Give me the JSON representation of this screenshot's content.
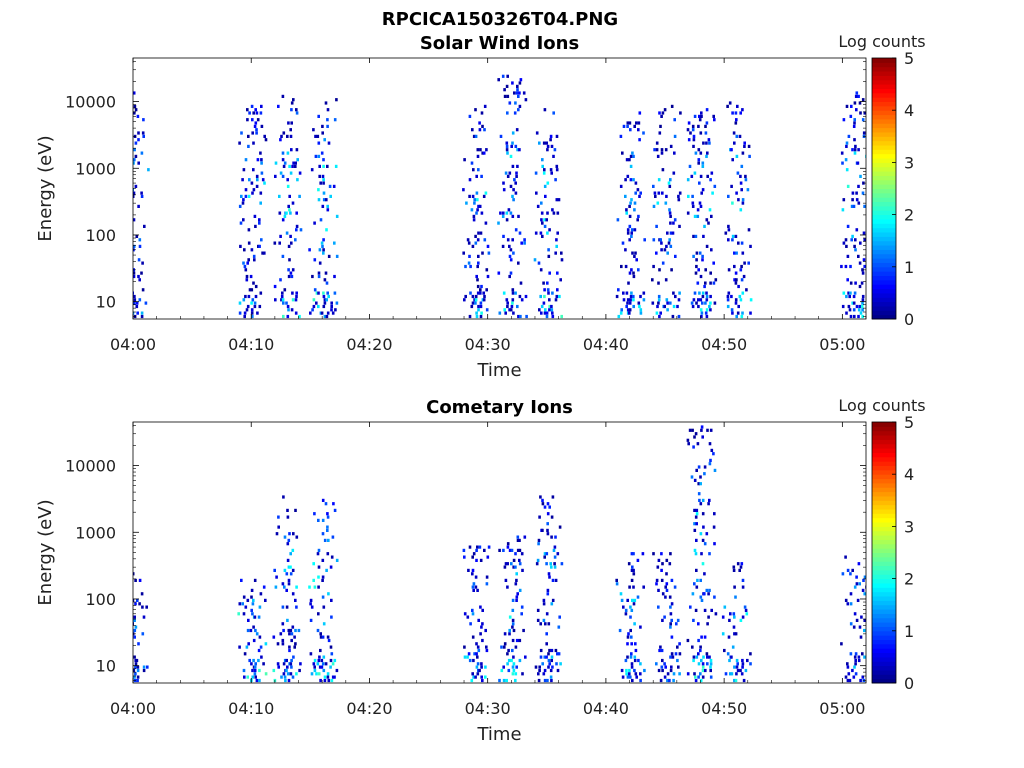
{
  "figure_title": "RPCICA150326T04.PNG",
  "colors": {
    "colormap": [
      "#00007f",
      "#0000ff",
      "#007fff",
      "#00ffff",
      "#7fff7f",
      "#ffff00",
      "#ff7f00",
      "#ff0000",
      "#7f0000"
    ],
    "axes": "#000000",
    "background": "#ffffff"
  },
  "chart_data": [
    {
      "type": "heatmap",
      "title": "Solar Wind Ions",
      "xlabel": "Time",
      "ylabel": "Energy (eV)",
      "colorbar_label": "Log counts",
      "colorbar_ticks": [
        "0",
        "1",
        "2",
        "3",
        "4",
        "5"
      ],
      "clim": [
        0,
        5
      ],
      "x_range": [
        "04:00",
        "05:02"
      ],
      "x_ticks": [
        "04:00",
        "04:10",
        "04:20",
        "04:30",
        "04:40",
        "04:50",
        "05:00"
      ],
      "y_scale": "log",
      "y_range": [
        5.5,
        45000
      ],
      "y_ticks": [
        "10",
        "100",
        "1000",
        "10000"
      ],
      "bursts": [
        {
          "t": "04:00",
          "e_range": [
            6,
            15000
          ],
          "peak": 1.6
        },
        {
          "t": "04:10",
          "e_range": [
            6,
            9000
          ],
          "peak": 2.0
        },
        {
          "t": "04:13",
          "e_range": [
            6,
            12000
          ],
          "peak": 2.2
        },
        {
          "t": "04:16",
          "e_range": [
            6,
            12000
          ],
          "peak": 2.3
        },
        {
          "t": "04:29",
          "e_range": [
            6,
            9000
          ],
          "peak": 2.0
        },
        {
          "t": "04:32",
          "e_range": [
            6,
            25000
          ],
          "peak": 2.2
        },
        {
          "t": "04:35",
          "e_range": [
            6,
            10000
          ],
          "peak": 2.4
        },
        {
          "t": "04:42",
          "e_range": [
            6,
            8000
          ],
          "peak": 1.9
        },
        {
          "t": "04:45",
          "e_range": [
            6,
            9000
          ],
          "peak": 2.0
        },
        {
          "t": "04:48",
          "e_range": [
            6,
            8000
          ],
          "peak": 2.0
        },
        {
          "t": "04:51",
          "e_range": [
            6,
            10000
          ],
          "peak": 2.1
        },
        {
          "t": "05:01",
          "e_range": [
            6,
            15000
          ],
          "peak": 2.1
        }
      ]
    },
    {
      "type": "heatmap",
      "title": "Cometary Ions",
      "xlabel": "Time",
      "ylabel": "Energy (eV)",
      "colorbar_label": "Log counts",
      "colorbar_ticks": [
        "0",
        "1",
        "2",
        "3",
        "4",
        "5"
      ],
      "clim": [
        0,
        5
      ],
      "x_range": [
        "04:00",
        "05:02"
      ],
      "x_ticks": [
        "04:00",
        "04:10",
        "04:20",
        "04:30",
        "04:40",
        "04:50",
        "05:00"
      ],
      "y_scale": "log",
      "y_range": [
        5.5,
        45000
      ],
      "y_ticks": [
        "10",
        "100",
        "1000",
        "10000"
      ],
      "bursts": [
        {
          "t": "04:00",
          "e_range": [
            6,
            250
          ],
          "peak": 1.5
        },
        {
          "t": "04:10",
          "e_range": [
            6,
            200
          ],
          "peak": 2.4
        },
        {
          "t": "04:13",
          "e_range": [
            6,
            3600
          ],
          "peak": 2.2
        },
        {
          "t": "04:16",
          "e_range": [
            6,
            3300
          ],
          "peak": 2.3
        },
        {
          "t": "04:29",
          "e_range": [
            6,
            600
          ],
          "peak": 2.2
        },
        {
          "t": "04:32",
          "e_range": [
            6,
            1000
          ],
          "peak": 2.2
        },
        {
          "t": "04:35",
          "e_range": [
            6,
            3400
          ],
          "peak": 1.9
        },
        {
          "t": "04:42",
          "e_range": [
            6,
            500
          ],
          "peak": 2.0
        },
        {
          "t": "04:45",
          "e_range": [
            6,
            500
          ],
          "peak": 1.6
        },
        {
          "t": "04:48",
          "e_range": [
            6,
            40000
          ],
          "peak": 2.2
        },
        {
          "t": "04:51",
          "e_range": [
            6,
            350
          ],
          "peak": 2.2
        },
        {
          "t": "05:01",
          "e_range": [
            6,
            500
          ],
          "peak": 2.0
        }
      ]
    }
  ]
}
